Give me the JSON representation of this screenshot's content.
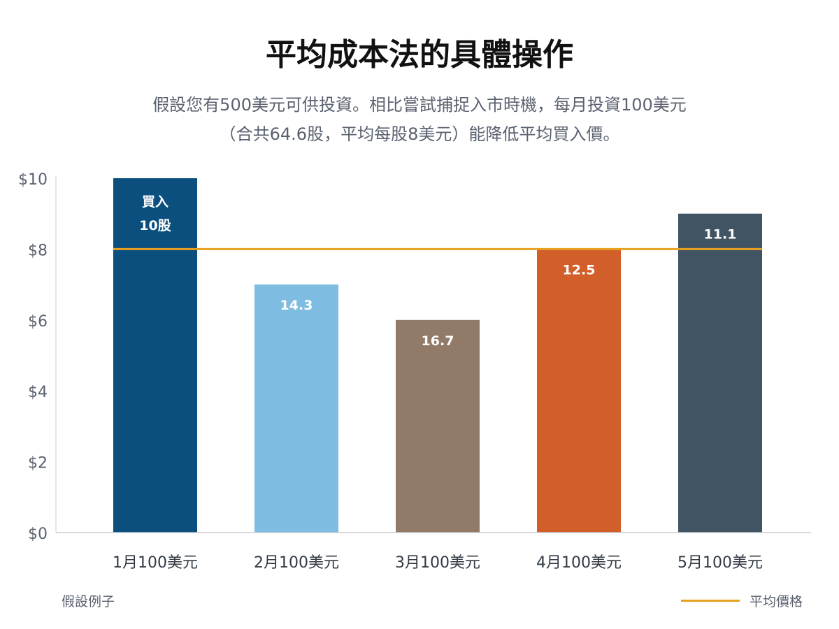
{
  "chart_data": {
    "type": "bar",
    "title": "平均成本法的具體操作",
    "subtitle": [
      "假設您有500美元可供投資。相比嘗試捕捉入市時機，每月投資100美元",
      "（合共64.6股，平均每股8美元）能降低平均買入價。"
    ],
    "categories": [
      "1月100美元",
      "2月100美元",
      "3月100美元",
      "4月100美元",
      "5月100美元"
    ],
    "values": [
      10,
      7,
      6,
      8,
      9
    ],
    "data_labels": [
      [
        "買入",
        "10股"
      ],
      [
        "14.3"
      ],
      [
        "16.7"
      ],
      [
        "12.5"
      ],
      [
        "11.1"
      ]
    ],
    "colors": [
      "#0b4f7e",
      "#7fbce2",
      "#927a68",
      "#d25f29",
      "#415464"
    ],
    "ylim": [
      0,
      10
    ],
    "yticks": [
      0,
      2,
      4,
      6,
      8,
      10
    ],
    "ytick_labels": [
      "$0",
      "$2",
      "$4",
      "$6",
      "$8",
      "$10"
    ],
    "reference_line": {
      "name": "平均價格",
      "value": 8,
      "color": "#e8a020"
    },
    "grid": false,
    "legend_position": "bottom-right",
    "note": "假設例子"
  }
}
